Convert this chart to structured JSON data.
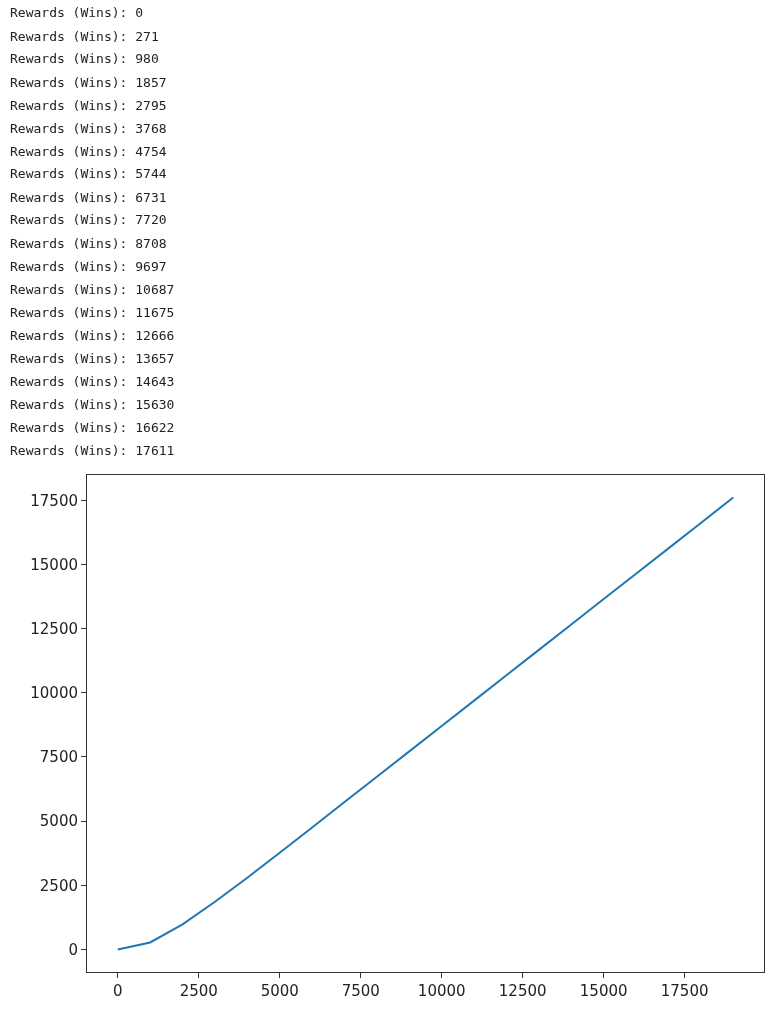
{
  "chart_data": {
    "type": "line",
    "annotations": [
      "Rewards (Wins): 0",
      "Rewards (Wins): 271",
      "Rewards (Wins): 980",
      "Rewards (Wins): 1857",
      "Rewards (Wins): 2795",
      "Rewards (Wins): 3768",
      "Rewards (Wins): 4754",
      "Rewards (Wins): 5744",
      "Rewards (Wins): 6731",
      "Rewards (Wins): 7720",
      "Rewards (Wins): 8708",
      "Rewards (Wins): 9697",
      "Rewards (Wins): 10687",
      "Rewards (Wins): 11675",
      "Rewards (Wins): 12666",
      "Rewards (Wins): 13657",
      "Rewards (Wins): 14643",
      "Rewards (Wins): 15630",
      "Rewards (Wins): 16622",
      "Rewards (Wins): 17611"
    ],
    "x": [
      0,
      1000,
      2000,
      3000,
      4000,
      5000,
      6000,
      7000,
      8000,
      9000,
      10000,
      11000,
      12000,
      13000,
      14000,
      15000,
      16000,
      17000,
      18000,
      19000
    ],
    "series": [
      {
        "color": "#1f77b4",
        "values": [
          0,
          271,
          980,
          1857,
          2795,
          3768,
          4754,
          5744,
          6731,
          7720,
          8708,
          9697,
          10687,
          11675,
          12666,
          13657,
          14643,
          15630,
          16622,
          17611
        ]
      }
    ],
    "xlim": [
      -950,
      19950
    ],
    "xticks": [
      0,
      2500,
      5000,
      7500,
      10000,
      12500,
      15000,
      17500
    ],
    "ylim": [
      -880,
      18490
    ],
    "yticks": [
      0,
      2500,
      5000,
      7500,
      10000,
      12500,
      15000,
      17500
    ],
    "marker": "none",
    "line_style": "solid"
  }
}
